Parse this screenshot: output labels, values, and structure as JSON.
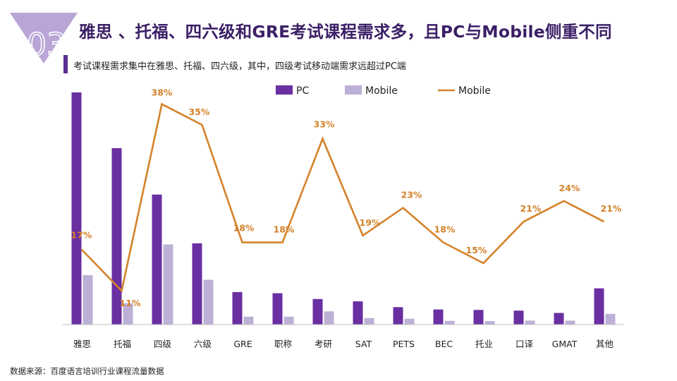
{
  "header": {
    "badge_number": "03",
    "title": "雅思 、托福、四六级和GRE考试课程需求多，且PC与Mobile侧重不同",
    "subtitle": "考试课程需求集中在雅思、托福、四六级，其中，四级考试移动端需求远超过PC端"
  },
  "footer": {
    "source": "数据来源：百度语言培训行业课程流量数据"
  },
  "colors": {
    "pc": "#6a2fa1",
    "mobile": "#bdb0d6",
    "line": "#d4822a",
    "title": "#3b1f66",
    "badge": "#b9a6d6"
  },
  "chart_data": {
    "type": "bar+line",
    "categories": [
      "雅思",
      "托福",
      "四级",
      "六级",
      "GRE",
      "职称",
      "考研",
      "SAT",
      "PETS",
      "BEC",
      "托业",
      "口译",
      "GMAT",
      "其他"
    ],
    "series": [
      {
        "name": "PC",
        "type": "bar",
        "values": [
          100,
          76,
          56,
          35,
          14,
          13.5,
          11,
          10,
          7.5,
          6.5,
          6.3,
          6,
          5,
          15.6
        ]
      },
      {
        "name": "Mobile",
        "type": "bar",
        "values": [
          21.3,
          9.2,
          34.5,
          19.3,
          3.4,
          3.4,
          5.7,
          2.8,
          2.5,
          1.6,
          1.5,
          1.7,
          1.7,
          4.6
        ]
      },
      {
        "name": "Mobile",
        "type": "line",
        "values": [
          17,
          11,
          38,
          35,
          18,
          18,
          33,
          19,
          23,
          18,
          15,
          21,
          24,
          21
        ],
        "labels": [
          "17%",
          "11%",
          "38%",
          "35%",
          "18%",
          "18%",
          "33%",
          "19%",
          "23%",
          "18%",
          "15%",
          "21%",
          "24%",
          "21%"
        ]
      }
    ],
    "bar_ylim": [
      0,
      100
    ],
    "line_ylim": [
      0,
      40
    ],
    "legend": "top-center",
    "grid": false
  }
}
